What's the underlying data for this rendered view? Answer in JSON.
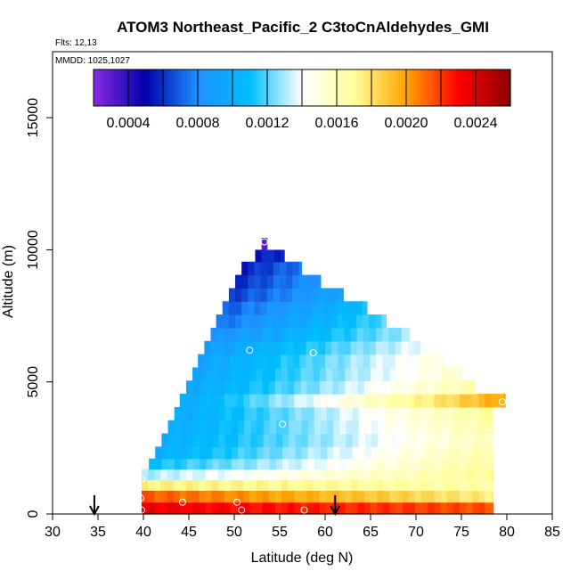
{
  "chart_data": {
    "type": "heatmap",
    "title": "ATOM3 Northeast_Pacific_2 C3toCnAldehydes_GMI",
    "flights_text": "Flts: 12,13",
    "mmdd_text": "MMDD: 1025,1027",
    "xlabel": "Latitude (deg N)",
    "ylabel": "Altitude (m)",
    "xlim": [
      30,
      85
    ],
    "ylim": [
      0,
      17500
    ],
    "x_ticks": [
      30,
      35,
      40,
      45,
      50,
      55,
      60,
      65,
      70,
      75,
      80,
      85
    ],
    "y_ticks": [
      0,
      5000,
      10000,
      15000
    ],
    "grid": false,
    "colorbar": {
      "placement": "top",
      "range": [
        0.0002,
        0.0026
      ],
      "ticks": [
        0.0004,
        0.0008,
        0.0012,
        0.0016,
        0.002,
        0.0024
      ],
      "tick_labels": [
        "0.0004",
        "0.0008",
        "0.0012",
        "0.0016",
        "0.0020",
        "0.0024"
      ],
      "colors": [
        "#8a2be2",
        "#0000aa",
        "#1e90ff",
        "#00bfff",
        "#ffffff",
        "#ffff99",
        "#ffa500",
        "#ff0000",
        "#8b0000"
      ]
    },
    "profile_rows": [
      {
        "alt": 200,
        "lat_min": 39.8,
        "lat_max": 78.5,
        "left": 0.00235,
        "right": 0.00215
      },
      {
        "alt": 700,
        "lat_min": 39.8,
        "lat_max": 78.5,
        "left": 0.00215,
        "right": 0.00175
      },
      {
        "alt": 1100,
        "lat_min": 39.8,
        "lat_max": 78.5,
        "left": 0.00175,
        "right": 0.00165
      },
      {
        "alt": 1500,
        "lat_min": 39.8,
        "lat_max": 78.5,
        "left": 0.0013,
        "right": 0.0017
      },
      {
        "alt": 1900,
        "lat_min": 40.6,
        "lat_max": 78.5,
        "left": 0.0011,
        "right": 0.00168
      },
      {
        "alt": 2300,
        "lat_min": 41.3,
        "lat_max": 78.5,
        "left": 0.001,
        "right": 0.00165
      },
      {
        "alt": 2800,
        "lat_min": 42.0,
        "lat_max": 78.5,
        "left": 0.00098,
        "right": 0.0016
      },
      {
        "alt": 3300,
        "lat_min": 42.7,
        "lat_max": 78.5,
        "left": 0.00097,
        "right": 0.00165
      },
      {
        "alt": 3800,
        "lat_min": 43.4,
        "lat_max": 78.5,
        "left": 0.00096,
        "right": 0.0017
      },
      {
        "alt": 4300,
        "lat_min": 44.0,
        "lat_max": 79.8,
        "left": 0.00095,
        "right": 0.002
      },
      {
        "alt": 4800,
        "lat_min": 44.7,
        "lat_max": 76.5,
        "left": 0.00094,
        "right": 0.00165
      },
      {
        "alt": 5300,
        "lat_min": 45.4,
        "lat_max": 75.0,
        "left": 0.00093,
        "right": 0.00155
      },
      {
        "alt": 5800,
        "lat_min": 46.0,
        "lat_max": 73.0,
        "left": 0.00092,
        "right": 0.0015
      },
      {
        "alt": 6300,
        "lat_min": 46.7,
        "lat_max": 71.0,
        "left": 0.00088,
        "right": 0.0014
      },
      {
        "alt": 6800,
        "lat_min": 47.4,
        "lat_max": 69.3,
        "left": 0.0008,
        "right": 0.0013
      },
      {
        "alt": 7300,
        "lat_min": 48.0,
        "lat_max": 66.7,
        "left": 0.00072,
        "right": 0.0012
      },
      {
        "alt": 7800,
        "lat_min": 48.7,
        "lat_max": 64.6,
        "left": 0.00068,
        "right": 0.0011
      },
      {
        "alt": 8300,
        "lat_min": 49.4,
        "lat_max": 62.0,
        "left": 0.00062,
        "right": 0.00095
      },
      {
        "alt": 8800,
        "lat_min": 50.1,
        "lat_max": 59.5,
        "left": 0.00058,
        "right": 0.00085
      },
      {
        "alt": 9300,
        "lat_min": 50.8,
        "lat_max": 57.4,
        "left": 0.00056,
        "right": 0.00075
      },
      {
        "alt": 9800,
        "lat_min": 52.3,
        "lat_max": 55.5,
        "left": 0.00055,
        "right": 0.0006
      },
      {
        "alt": 10200,
        "lat_min": 53.0,
        "lat_max": 53.6,
        "left": 0.0003,
        "right": 0.0003
      }
    ],
    "samples": [
      {
        "lat": 53.3,
        "alt": 10300
      },
      {
        "lat": 51.7,
        "alt": 6200
      },
      {
        "lat": 58.7,
        "alt": 6100
      },
      {
        "lat": 55.3,
        "alt": 3400
      },
      {
        "lat": 79.5,
        "alt": 4250
      },
      {
        "lat": 78.0,
        "alt": 3100
      },
      {
        "lat": 39.8,
        "alt": 1300
      },
      {
        "lat": 39.7,
        "alt": 600
      },
      {
        "lat": 39.8,
        "alt": 150
      },
      {
        "lat": 44.3,
        "alt": 450
      },
      {
        "lat": 50.3,
        "alt": 450
      },
      {
        "lat": 50.8,
        "alt": 150
      },
      {
        "lat": 57.7,
        "alt": 150
      }
    ],
    "arrows": [
      {
        "lat": 34.6
      },
      {
        "lat": 61.1
      }
    ]
  }
}
